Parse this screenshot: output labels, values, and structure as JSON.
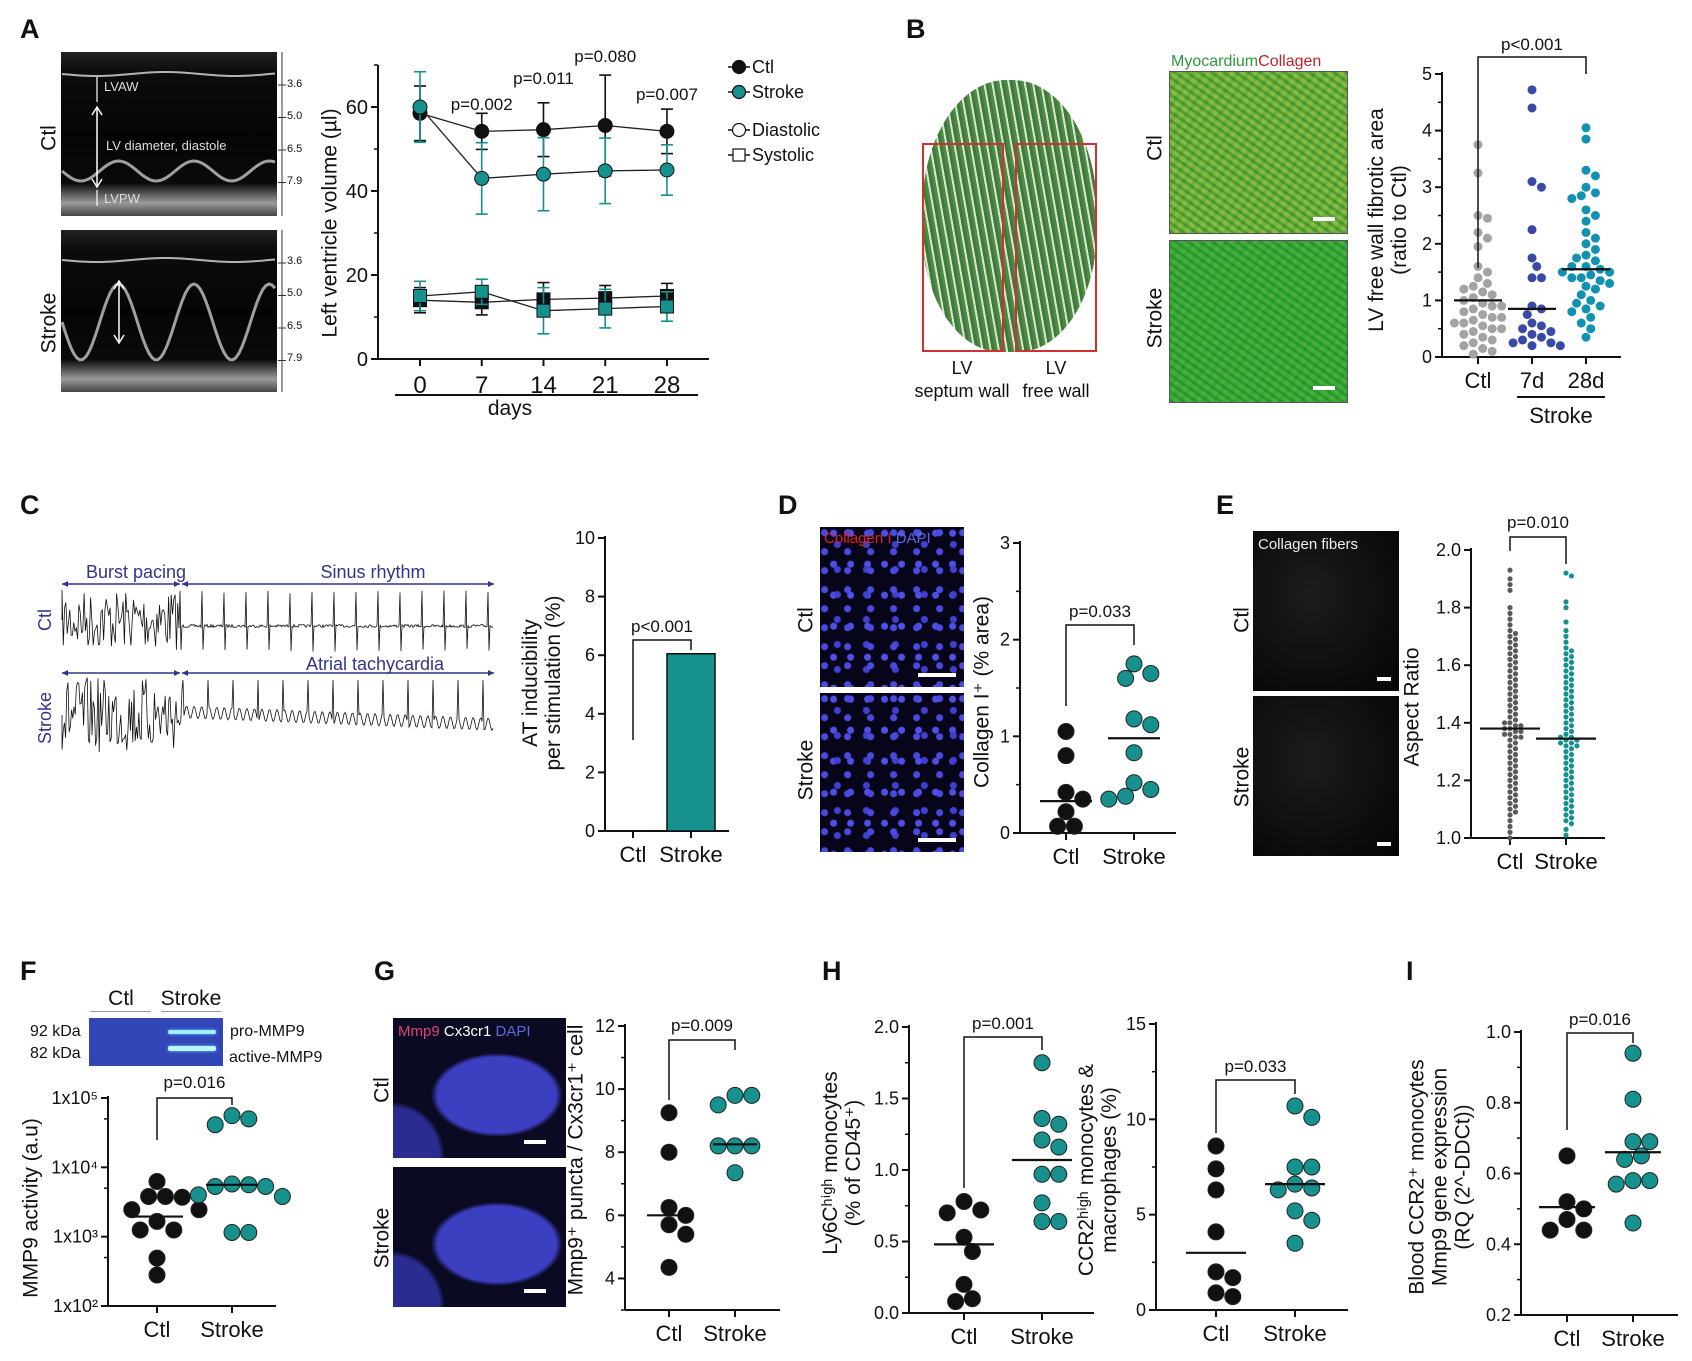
{
  "panels": {
    "A": {
      "letter": "A",
      "row_labels": [
        "Ctl",
        "Stroke"
      ],
      "annotations": [
        "LVAW",
        "LV diameter, diastole",
        "LVPW"
      ],
      "scale_ticks": [
        "3.6",
        "5.0",
        "6.5",
        "7.9"
      ]
    },
    "B": {
      "letter": "B",
      "stain_label_1": "Myocardium",
      "stain_label_2": "Collagen",
      "row_labels": [
        "Ctl",
        "Stroke"
      ],
      "region_labels": [
        "LV\nseptum wall",
        "LV\nfree wall"
      ],
      "colors": {
        "myocardium": "#2a9a3a",
        "collagen": "#c0202a",
        "box": "#d03030"
      }
    },
    "C": {
      "letter": "C",
      "row_labels": [
        "Ctl",
        "Stroke"
      ],
      "segments": [
        "Burst pacing",
        "Sinus rhythm",
        "Atrial tachycardia"
      ],
      "colors": {
        "annotation": "#33338a"
      }
    },
    "D": {
      "letter": "D",
      "stain_label_1": "Collagen I",
      "stain_label_2": "DAPI",
      "row_labels": [
        "Ctl",
        "Stroke"
      ]
    },
    "E": {
      "letter": "E",
      "stain_label": "Collagen fibers",
      "row_labels": [
        "Ctl",
        "Stroke"
      ]
    },
    "F": {
      "letter": "F",
      "gel_lanes": [
        "Ctl",
        "Stroke"
      ],
      "gel_markers": [
        "92 kDa",
        "82 kDa"
      ],
      "gel_bands": [
        "pro-MMP9",
        "active-MMP9"
      ]
    },
    "G": {
      "letter": "G",
      "stain_label_1": "Mmp9",
      "stain_label_2": "Cx3cr1",
      "stain_label_3": "DAPI",
      "row_labels": [
        "Ctl",
        "Stroke"
      ]
    },
    "H": {
      "letter": "H"
    },
    "I": {
      "letter": "I"
    }
  },
  "colors": {
    "ctl": "#111111",
    "stroke": "#17918d",
    "b_ctl": "#a3a3a3",
    "b_7d": "#3a48a6",
    "b_28d": "#1292b0",
    "e_ctl": "#5a5a5a"
  },
  "chart_data": [
    {
      "type": "line",
      "panel": "A",
      "ylabel": "Left ventricle volume (µl)",
      "xlabel": "days",
      "x": [
        0,
        7,
        14,
        21,
        28
      ],
      "xticks": [
        "0",
        "7",
        "14",
        "21",
        "28"
      ],
      "ylim": [
        0,
        70
      ],
      "yticks": [
        "0",
        "20",
        "40",
        "60"
      ],
      "legend": [
        "Ctl",
        "Stroke",
        "Diastolic",
        "Systolic"
      ],
      "legend_placement": "top-right",
      "series": [
        {
          "name": "Ctl",
          "phase": "Diastolic",
          "values": [
            58.5,
            54.2,
            54.6,
            55.6,
            54.2
          ],
          "sd": [
            6.5,
            4.3,
            6.4,
            12,
            5.3
          ]
        },
        {
          "name": "Stroke",
          "phase": "Diastolic",
          "values": [
            60,
            43,
            44,
            44.8,
            45
          ],
          "sd": [
            8.4,
            8.5,
            8.7,
            7.8,
            6
          ]
        },
        {
          "name": "Ctl",
          "phase": "Systolic",
          "values": [
            14,
            13.5,
            14.2,
            14.5,
            15
          ],
          "sd": [
            3,
            3,
            4,
            3,
            3
          ]
        },
        {
          "name": "Stroke",
          "phase": "Systolic",
          "values": [
            15,
            16,
            11.5,
            12,
            12.5
          ],
          "sd": [
            3.5,
            3,
            5.5,
            4.6,
            3.5
          ]
        }
      ],
      "annotations": [
        "p=0.002",
        "p=0.011",
        "p=0.080",
        "p=0.007"
      ]
    },
    {
      "type": "scatter",
      "panel": "B",
      "ylabel": "LV free wall fibrotic area\n(ratio to Ctl)",
      "categories": [
        "Ctl",
        "7d",
        "28d"
      ],
      "group_label": "Stroke",
      "ylim": [
        0,
        5
      ],
      "yticks": [
        "0",
        "1",
        "2",
        "3",
        "4",
        "5"
      ],
      "series": [
        {
          "name": "Ctl",
          "values": [
            3.75,
            3.25,
            2.5,
            2.45,
            2.2,
            2.1,
            1.95,
            1.6,
            1.5,
            1.4,
            1.3,
            1.25,
            1.2,
            1.15,
            1.1,
            1.05,
            1.0,
            0.95,
            0.9,
            0.9,
            0.85,
            0.8,
            0.75,
            0.7,
            0.7,
            0.65,
            0.6,
            0.6,
            0.55,
            0.5,
            0.5,
            0.45,
            0.4,
            0.35,
            0.3,
            0.25,
            0.2,
            0.15,
            0.1,
            0.05
          ],
          "mean": 1.0
        },
        {
          "name": "7d",
          "values": [
            4.72,
            4.4,
            3.1,
            3.0,
            2.25,
            1.75,
            1.6,
            1.4,
            1.4,
            0.9,
            0.85,
            0.75,
            0.6,
            0.55,
            0.5,
            0.45,
            0.4,
            0.35,
            0.3,
            0.25,
            0.25,
            0.2,
            0.2
          ],
          "mean": 0.85
        },
        {
          "name": "28d",
          "values": [
            4.05,
            3.85,
            3.3,
            3.2,
            3.0,
            2.9,
            2.85,
            2.8,
            2.6,
            2.5,
            2.4,
            2.2,
            2.1,
            2.0,
            1.9,
            1.8,
            1.75,
            1.7,
            1.6,
            1.6,
            1.55,
            1.5,
            1.5,
            1.45,
            1.4,
            1.4,
            1.35,
            1.3,
            1.25,
            1.2,
            1.1,
            1.0,
            0.95,
            0.9,
            0.85,
            0.8,
            0.7,
            0.6,
            0.5,
            0.35
          ],
          "mean": 1.55
        }
      ],
      "annotations": [
        "p<0.001"
      ]
    },
    {
      "type": "bar",
      "panel": "C",
      "ylabel": "AT inducibility\nper stimulation (%)",
      "categories": [
        "Ctl",
        "Stroke"
      ],
      "values": [
        0,
        6.05
      ],
      "ylim": [
        0,
        10
      ],
      "yticks": [
        "0",
        "2",
        "4",
        "6",
        "8",
        "10"
      ],
      "annotations": [
        "p<0.001"
      ]
    },
    {
      "type": "scatter",
      "panel": "D",
      "ylabel": "Collagen I⁺ (% area)",
      "categories": [
        "Ctl",
        "Stroke"
      ],
      "ylim": [
        0,
        3
      ],
      "yticks": [
        "0",
        "1",
        "2",
        "3"
      ],
      "series": [
        {
          "name": "Ctl",
          "values": [
            1.05,
            0.8,
            0.42,
            0.35,
            0.22,
            0.07,
            0.07
          ],
          "mean": 0.33
        },
        {
          "name": "Stroke",
          "values": [
            1.75,
            1.65,
            1.6,
            1.18,
            1.12,
            0.83,
            0.52,
            0.45,
            0.38,
            0.35
          ],
          "mean": 0.98
        }
      ],
      "annotations": [
        "p=0.033"
      ]
    },
    {
      "type": "scatter",
      "panel": "E",
      "ylabel": "Aspect Ratio",
      "categories": [
        "Ctl",
        "Stroke"
      ],
      "ylim": [
        1.0,
        2.0
      ],
      "yticks": [
        "1.0",
        "1.2",
        "1.4",
        "1.6",
        "1.8",
        "2.0"
      ],
      "series": [
        {
          "name": "Ctl",
          "values": [
            1.93,
            1.9,
            1.88,
            1.86,
            1.8,
            1.78,
            1.76,
            1.74,
            1.72,
            1.71,
            1.7,
            1.69,
            1.68,
            1.67,
            1.66,
            1.65,
            1.64,
            1.63,
            1.62,
            1.61,
            1.6,
            1.59,
            1.58,
            1.57,
            1.56,
            1.55,
            1.54,
            1.53,
            1.52,
            1.51,
            1.5,
            1.49,
            1.48,
            1.47,
            1.46,
            1.45,
            1.44,
            1.43,
            1.42,
            1.41,
            1.4,
            1.4,
            1.39,
            1.39,
            1.38,
            1.38,
            1.37,
            1.37,
            1.36,
            1.36,
            1.35,
            1.35,
            1.34,
            1.33,
            1.32,
            1.31,
            1.3,
            1.29,
            1.28,
            1.27,
            1.26,
            1.25,
            1.24,
            1.23,
            1.22,
            1.21,
            1.2,
            1.19,
            1.18,
            1.17,
            1.16,
            1.15,
            1.14,
            1.13,
            1.12,
            1.11,
            1.1,
            1.09,
            1.08,
            1.06,
            1.04,
            1.02,
            1.0
          ],
          "mean": 1.38
        },
        {
          "name": "Stroke",
          "values": [
            1.92,
            1.91,
            1.82,
            1.8,
            1.75,
            1.72,
            1.7,
            1.68,
            1.66,
            1.65,
            1.64,
            1.63,
            1.62,
            1.61,
            1.6,
            1.59,
            1.58,
            1.57,
            1.56,
            1.55,
            1.54,
            1.53,
            1.52,
            1.51,
            1.5,
            1.49,
            1.48,
            1.47,
            1.46,
            1.45,
            1.44,
            1.43,
            1.42,
            1.41,
            1.4,
            1.39,
            1.38,
            1.37,
            1.36,
            1.35,
            1.35,
            1.34,
            1.34,
            1.33,
            1.33,
            1.32,
            1.32,
            1.31,
            1.3,
            1.29,
            1.28,
            1.27,
            1.26,
            1.25,
            1.24,
            1.23,
            1.22,
            1.21,
            1.2,
            1.19,
            1.18,
            1.17,
            1.16,
            1.15,
            1.14,
            1.13,
            1.12,
            1.11,
            1.1,
            1.09,
            1.08,
            1.07,
            1.06,
            1.05,
            1.03,
            1.01
          ],
          "mean": 1.345
        }
      ],
      "annotations": [
        "p=0.010"
      ]
    },
    {
      "type": "scatter",
      "panel": "F",
      "ylabel": "MMP9 activity (a.u)",
      "yscale": "log",
      "categories": [
        "Ctl",
        "Stroke"
      ],
      "ylim": [
        100,
        100000
      ],
      "yticks": [
        "1x10²",
        "1x10³",
        "1x10⁴",
        "1x10⁵"
      ],
      "series": [
        {
          "name": "Ctl",
          "values": [
            6250,
            3800,
            3800,
            3700,
            2450,
            2450,
            1660,
            1250,
            1250,
            490,
            280
          ],
          "mean": 1950
        },
        {
          "name": "Stroke",
          "values": [
            55600,
            50000,
            41200,
            5750,
            5600,
            5300,
            5300,
            4000,
            3800,
            1150,
            1150
          ],
          "mean": 5600
        }
      ],
      "annotations": [
        "p=0.016"
      ]
    },
    {
      "type": "scatter",
      "panel": "G",
      "ylabel": "Mmp9⁺ puncta / Cx3cr1⁺ cell",
      "categories": [
        "Ctl",
        "Stroke"
      ],
      "ylim": [
        3,
        12
      ],
      "yticks": [
        "4",
        "6",
        "8",
        "10",
        "12"
      ],
      "series": [
        {
          "name": "Ctl",
          "values": [
            9.25,
            8.0,
            6.25,
            6.0,
            5.7,
            5.4,
            4.35
          ],
          "mean": 6.0
        },
        {
          "name": "Stroke",
          "values": [
            9.8,
            9.8,
            9.5,
            8.2,
            8.2,
            8.2,
            7.35
          ],
          "mean": 8.25
        }
      ],
      "annotations": [
        "p=0.009"
      ]
    },
    {
      "type": "scatter",
      "panel": "H",
      "ylabel": "Ly6Cʰⁱᵍʰ monocytes\n(% of CD45⁺)",
      "categories": [
        "Ctl",
        "Stroke"
      ],
      "ylim": [
        0,
        2
      ],
      "yticks": [
        "0.0",
        "0.5",
        "1.0",
        "1.5",
        "2.0"
      ],
      "series": [
        {
          "name": "Ctl",
          "values": [
            0.78,
            0.72,
            0.7,
            0.53,
            0.43,
            0.2,
            0.1,
            0.08
          ],
          "mean": 0.48
        },
        {
          "name": "Stroke",
          "values": [
            1.75,
            1.36,
            1.32,
            1.21,
            1.16,
            0.97,
            0.97,
            0.77,
            0.64,
            0.64
          ],
          "mean": 1.07
        }
      ],
      "annotations": [
        "p=0.001"
      ]
    },
    {
      "type": "scatter",
      "panel": "H",
      "ylabel": "CCR2ʰⁱᵍʰ monocytes &\nmacrophages (%)",
      "categories": [
        "Ctl",
        "Stroke"
      ],
      "ylim": [
        0,
        15
      ],
      "yticks": [
        "0",
        "5",
        "10",
        "15"
      ],
      "series": [
        {
          "name": "Ctl",
          "values": [
            8.6,
            7.4,
            6.3,
            4.1,
            2.0,
            1.7,
            0.9,
            0.7
          ],
          "mean": 3.0
        },
        {
          "name": "Stroke",
          "values": [
            10.7,
            10.1,
            7.5,
            7.5,
            6.6,
            6.4,
            6.3,
            5.2,
            4.7,
            3.5
          ],
          "mean": 6.6
        }
      ],
      "annotations": [
        "p=0.033"
      ]
    },
    {
      "type": "scatter",
      "panel": "I",
      "ylabel": "Blood CCR2⁺ monocytes\nMmp9 gene expression\n(RQ (2^-DDCt))",
      "categories": [
        "Ctl",
        "Stroke"
      ],
      "ylim": [
        0.2,
        1.0
      ],
      "yticks": [
        "0.2",
        "0.4",
        "0.6",
        "0.8",
        "1.0"
      ],
      "series": [
        {
          "name": "Ctl",
          "values": [
            0.65,
            0.52,
            0.5,
            0.47,
            0.44,
            0.44
          ],
          "mean": 0.505
        },
        {
          "name": "Stroke",
          "values": [
            0.94,
            0.81,
            0.69,
            0.69,
            0.65,
            0.64,
            0.58,
            0.58,
            0.57,
            0.46
          ],
          "mean": 0.66
        }
      ],
      "annotations": [
        "p=0.016"
      ]
    }
  ]
}
